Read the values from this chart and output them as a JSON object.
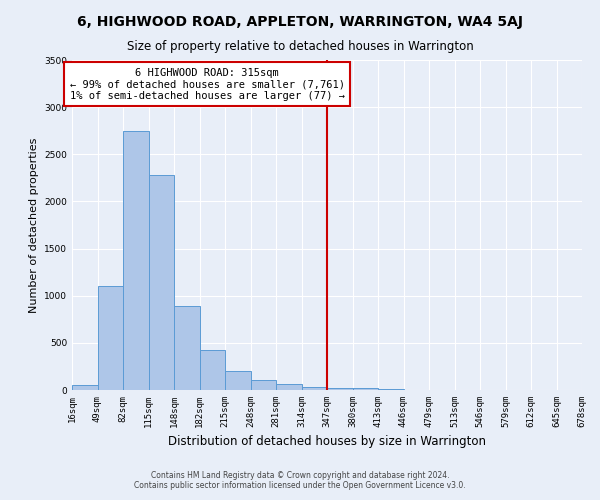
{
  "title": "6, HIGHWOOD ROAD, APPLETON, WARRINGTON, WA4 5AJ",
  "subtitle": "Size of property relative to detached houses in Warrington",
  "xlabel": "Distribution of detached houses by size in Warrington",
  "ylabel": "Number of detached properties",
  "annotation_title": "6 HIGHWOOD ROAD: 315sqm",
  "annotation_line1": "← 99% of detached houses are smaller (7,761)",
  "annotation_line2": "1% of semi-detached houses are larger (77) →",
  "footer_line1": "Contains HM Land Registry data © Crown copyright and database right 2024.",
  "footer_line2": "Contains public sector information licensed under the Open Government Licence v3.0.",
  "bar_values": [
    50,
    1100,
    2750,
    2280,
    890,
    420,
    200,
    110,
    60,
    30,
    25,
    20,
    10,
    5,
    3,
    2,
    1,
    1,
    1,
    1
  ],
  "x_labels": [
    "16sqm",
    "49sqm",
    "82sqm",
    "115sqm",
    "148sqm",
    "182sqm",
    "215sqm",
    "248sqm",
    "281sqm",
    "314sqm",
    "347sqm",
    "380sqm",
    "413sqm",
    "446sqm",
    "479sqm",
    "513sqm",
    "546sqm",
    "579sqm",
    "612sqm",
    "645sqm",
    "678sqm"
  ],
  "bar_color": "#aec6e8",
  "bar_edge_color": "#5b9bd5",
  "vline_color": "#cc0000",
  "annotation_box_color": "#cc0000",
  "background_color": "#e8eef8",
  "grid_color": "#ffffff",
  "ylim": [
    0,
    3500
  ],
  "yticks": [
    0,
    500,
    1000,
    1500,
    2000,
    2500,
    3000,
    3500
  ]
}
